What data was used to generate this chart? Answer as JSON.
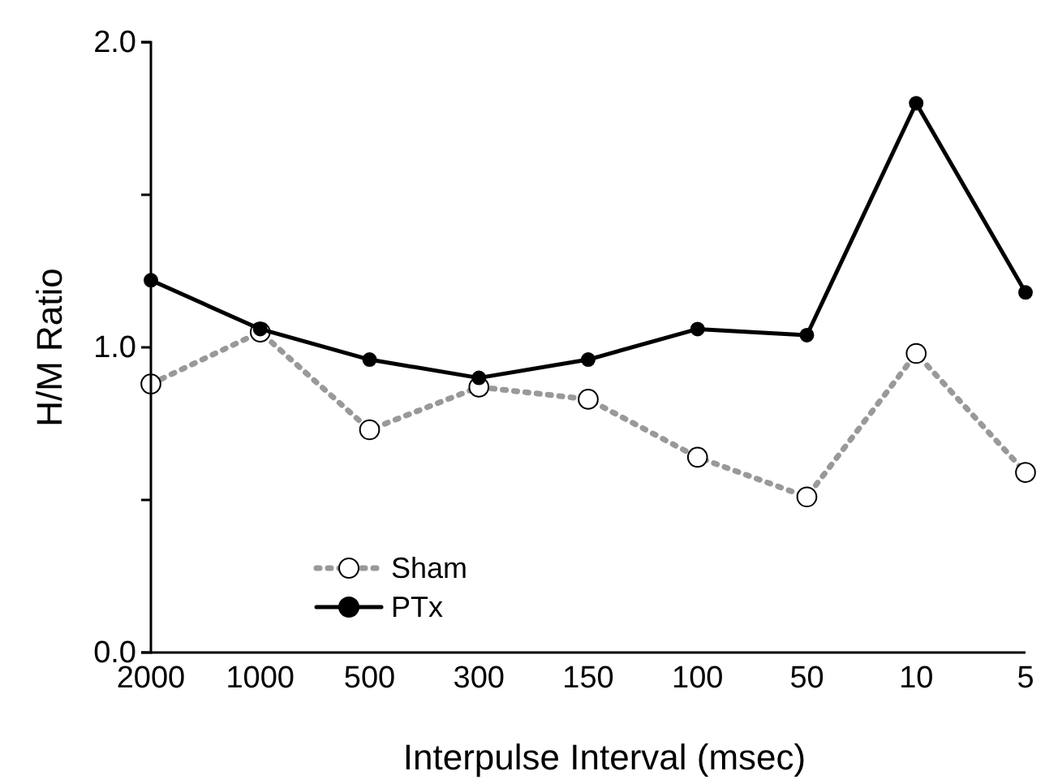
{
  "chart_data": {
    "type": "line",
    "xlabel": "Interpulse Interval (msec)",
    "ylabel": "H/M Ratio",
    "categories": [
      "2000",
      "1000",
      "500",
      "300",
      "150",
      "100",
      "50",
      "10",
      "5"
    ],
    "ylim": [
      0,
      2
    ],
    "yticks": [
      {
        "value": 0,
        "label": "0.0"
      },
      {
        "value": 0.5,
        "label": null
      },
      {
        "value": 1,
        "label": "1.0"
      },
      {
        "value": 1.5,
        "label": null
      },
      {
        "value": 2,
        "label": "2.0"
      }
    ],
    "series": [
      {
        "name": "Sham",
        "color": "#999999",
        "line_style": "dotted",
        "values": [
          0.88,
          1.05,
          0.73,
          0.87,
          0.83,
          0.64,
          0.51,
          0.98,
          0.59
        ]
      },
      {
        "name": "PTx",
        "color": "#000000",
        "line_style": "solid",
        "values": [
          1.22,
          1.06,
          0.96,
          0.9,
          0.96,
          1.06,
          1.04,
          1.8,
          1.18
        ]
      }
    ],
    "marker": "circle",
    "legend": "bottom left",
    "grid": false
  }
}
